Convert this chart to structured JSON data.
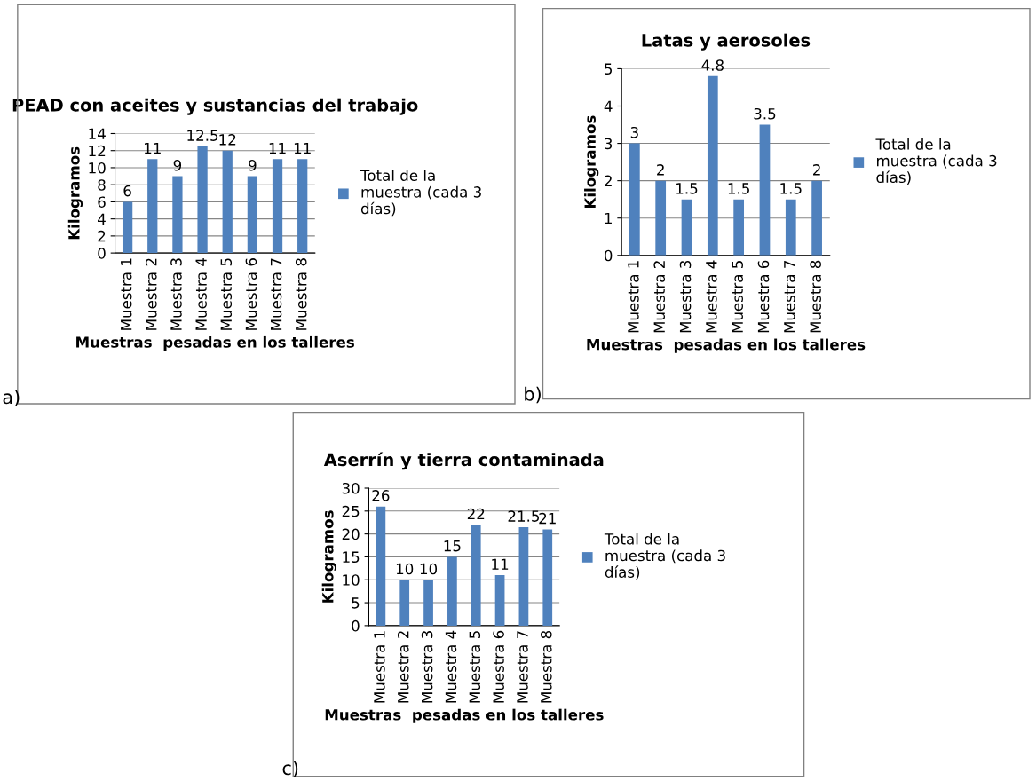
{
  "chart_data": [
    {
      "type": "bar",
      "title": "PEAD con aceites y sustancias del trabajo",
      "xlabel": "Muestras  pesadas en los talleres",
      "ylabel": "Kilogramos",
      "categories": [
        "Muestra 1",
        "Muestra 2",
        "Muestra 3",
        "Muestra 4",
        "Muestra 5",
        "Muestra 6",
        "Muestra 7",
        "Muestra 8"
      ],
      "series": [
        {
          "name": "Total de la\nmuestra (cada 3\ndías)",
          "color": "#4f81bd",
          "values": [
            6,
            11,
            9,
            12.5,
            12,
            9,
            11,
            11
          ]
        }
      ],
      "ylim": [
        0,
        14
      ],
      "yticks": [
        0,
        2,
        4,
        6,
        8,
        10,
        12,
        14
      ],
      "grid": "y",
      "legend": "right",
      "data_labels": true,
      "annotations": [
        "a)"
      ]
    },
    {
      "type": "bar",
      "title": "Latas y aerosoles",
      "xlabel": "Muestras  pesadas en los talleres",
      "ylabel": "Kilogramos",
      "categories": [
        "Muestra 1",
        "Muestra 2",
        "Muestra 3",
        "Muestra 4",
        "Muestra 5",
        "Muestra 6",
        "Muestra 7",
        "Muestra 8"
      ],
      "series": [
        {
          "name": "Total de la\nmuestra (cada 3\ndías)",
          "color": "#4f81bd",
          "values": [
            3,
            2,
            1.5,
            4.8,
            1.5,
            3.5,
            1.5,
            2
          ]
        }
      ],
      "ylim": [
        0,
        5
      ],
      "yticks": [
        0,
        1,
        2,
        3,
        4,
        5
      ],
      "grid": "y",
      "legend": "right",
      "data_labels": true,
      "annotations": [
        "b)"
      ]
    },
    {
      "type": "bar",
      "title": "Aserrín y tierra contaminada",
      "xlabel": "Muestras  pesadas en los talleres",
      "ylabel": "Kilogramos",
      "categories": [
        "Muestra 1",
        "Muestra 2",
        "Muestra 3",
        "Muestra 4",
        "Muestra 5",
        "Muestra 6",
        "Muestra 7",
        "Muestra 8"
      ],
      "series": [
        {
          "name": "Total de la\nmuestra (cada 3\ndías)",
          "color": "#4f81bd",
          "values": [
            26,
            10,
            10,
            15,
            22,
            11,
            21.5,
            21
          ]
        }
      ],
      "ylim": [
        0,
        30
      ],
      "yticks": [
        0,
        5,
        10,
        15,
        20,
        25,
        30
      ],
      "grid": "y",
      "legend": "right",
      "data_labels": true,
      "annotations": [
        "c)"
      ]
    }
  ]
}
